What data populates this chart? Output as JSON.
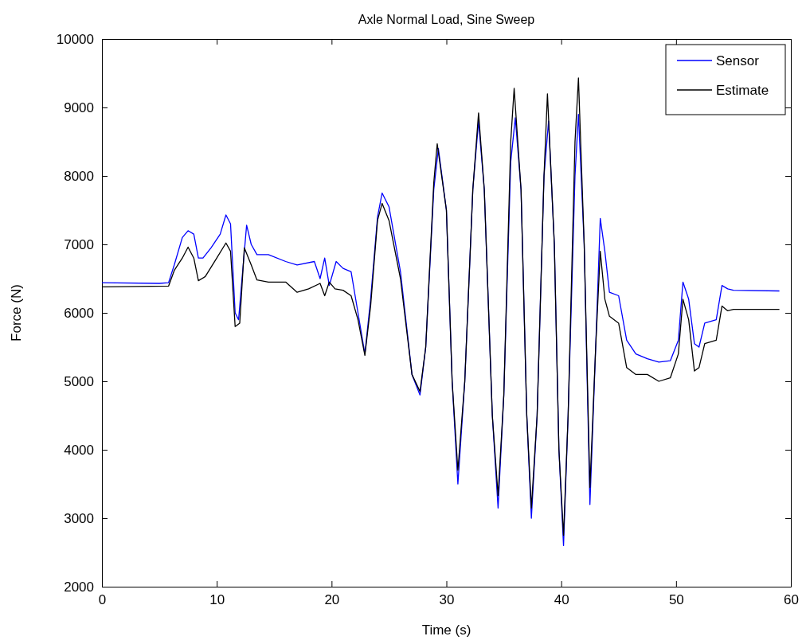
{
  "chart_data": {
    "type": "line",
    "title": "Axle Normal Load, Sine Sweep",
    "xlabel": "Time (s)",
    "ylabel": "Force (N)",
    "xlim": [
      0,
      60
    ],
    "xticks": [
      0,
      10,
      20,
      30,
      40,
      50,
      60
    ],
    "ylim": [
      2000,
      10000
    ],
    "yticks": [
      2000,
      3000,
      4000,
      5000,
      6000,
      7000,
      8000,
      9000,
      10000
    ],
    "grid": false,
    "legend": "top right",
    "marker": "none",
    "line_style": "solid",
    "series": [
      {
        "name": "Sensor",
        "color": "#0000ff",
        "x": [
          0,
          5,
          5.8,
          6.3,
          7.0,
          7.5,
          8.0,
          8.4,
          8.8,
          9.5,
          10.3,
          10.8,
          11.2,
          11.6,
          11.9,
          12.2,
          12.6,
          13.0,
          13.5,
          14.5,
          16,
          17,
          18.5,
          19,
          19.4,
          19.8,
          20.4,
          21,
          21.7,
          22.3,
          22.9,
          23.4,
          24.0,
          24.4,
          25,
          26,
          27,
          27.7,
          28.2,
          28.9,
          29.3,
          30,
          30.5,
          31.0,
          31.6,
          32.3,
          32.8,
          33.3,
          34.0,
          34.5,
          35.0,
          35.6,
          36.0,
          36.5,
          37.0,
          37.4,
          37.9,
          38.5,
          38.9,
          39.4,
          39.8,
          40.2,
          40.6,
          41.2,
          41.5,
          42.0,
          42.5,
          43.0,
          43.4,
          43.8,
          44.2,
          45,
          45.7,
          46.5,
          47.5,
          48.5,
          49.5,
          50.2,
          50.6,
          51.1,
          51.6,
          52,
          52.5,
          53.5,
          54.0,
          54.5,
          55,
          59
        ],
        "values": [
          6440,
          6430,
          6440,
          6700,
          7100,
          7200,
          7150,
          6800,
          6800,
          6950,
          7150,
          7430,
          7300,
          6000,
          5900,
          6500,
          7280,
          7000,
          6850,
          6850,
          6750,
          6700,
          6750,
          6500,
          6800,
          6400,
          6750,
          6650,
          6600,
          6000,
          5400,
          6200,
          7400,
          7750,
          7550,
          6600,
          5100,
          4800,
          5500,
          7800,
          8400,
          7500,
          5000,
          3500,
          5000,
          7800,
          8800,
          7800,
          4500,
          3150,
          4800,
          8200,
          8850,
          7800,
          4500,
          3000,
          4500,
          8000,
          8800,
          7000,
          4000,
          2600,
          4500,
          8000,
          8900,
          7000,
          3200,
          5500,
          7380,
          6900,
          6300,
          6250,
          5600,
          5400,
          5330,
          5280,
          5300,
          5600,
          6450,
          6200,
          5550,
          5500,
          5850,
          5900,
          6400,
          6350,
          6330,
          6320
        ]
      },
      {
        "name": "Estimate",
        "color": "#000000",
        "x": [
          0,
          5.8,
          6.3,
          7.0,
          7.5,
          8.0,
          8.4,
          9.0,
          10.0,
          10.8,
          11.2,
          11.6,
          12.0,
          12.4,
          13.0,
          13.5,
          14.5,
          16,
          17,
          18,
          19,
          19.4,
          19.8,
          20.3,
          21,
          21.7,
          22.3,
          22.9,
          23.4,
          24.0,
          24.4,
          25,
          26,
          27,
          27.7,
          28.2,
          28.9,
          29.2,
          30,
          30.5,
          31.0,
          31.6,
          32.3,
          32.8,
          33.3,
          34.0,
          34.5,
          35.0,
          35.6,
          35.9,
          36.5,
          37.0,
          37.4,
          37.9,
          38.5,
          38.8,
          39.4,
          39.8,
          40.2,
          40.6,
          41.2,
          41.5,
          42.0,
          42.5,
          43.0,
          43.4,
          43.8,
          44.2,
          45,
          45.7,
          46.5,
          47.5,
          48.5,
          49.5,
          50.2,
          50.6,
          51.1,
          51.6,
          52,
          52.5,
          53.5,
          54.0,
          54.5,
          55,
          59
        ],
        "values": [
          6380,
          6390,
          6620,
          6800,
          6960,
          6800,
          6470,
          6530,
          6800,
          7020,
          6900,
          5800,
          5850,
          6950,
          6700,
          6480,
          6450,
          6450,
          6300,
          6350,
          6430,
          6250,
          6450,
          6350,
          6330,
          6250,
          5900,
          5380,
          6100,
          7350,
          7600,
          7350,
          6500,
          5100,
          4850,
          5500,
          7900,
          8470,
          7500,
          5000,
          3700,
          5000,
          7800,
          8920,
          7800,
          4500,
          3330,
          4800,
          8500,
          9280,
          7800,
          4500,
          3150,
          4500,
          8000,
          9200,
          7000,
          4000,
          2750,
          4500,
          8500,
          9430,
          7000,
          3450,
          5500,
          6900,
          6200,
          5950,
          5850,
          5200,
          5100,
          5100,
          5000,
          5050,
          5400,
          6200,
          5900,
          5150,
          5200,
          5550,
          5600,
          6100,
          6030,
          6050,
          6050
        ]
      }
    ]
  }
}
